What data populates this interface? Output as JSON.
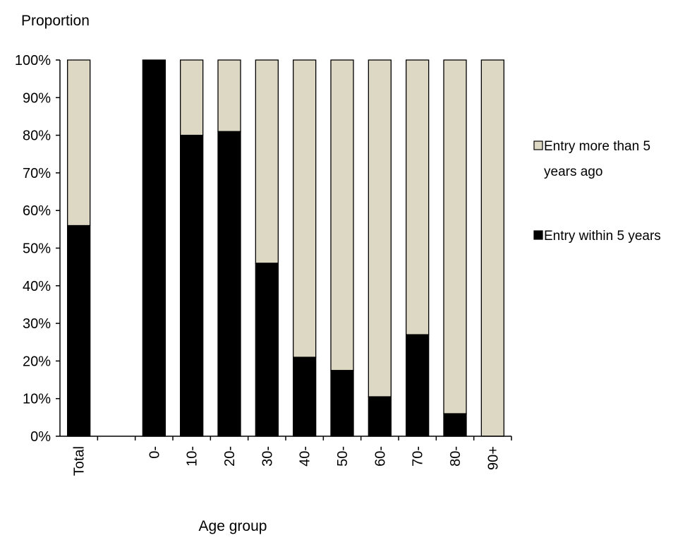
{
  "chart_data": {
    "type": "bar",
    "stacked": true,
    "title": "",
    "ylabel": "Proportion",
    "xlabel": "Age group",
    "categories": [
      "Total",
      "",
      "0-",
      "10-",
      "20-",
      "30-",
      "40-",
      "50-",
      "60-",
      "70-",
      "80-",
      "90+"
    ],
    "ylim": [
      0,
      100
    ],
    "yticks": [
      "0%",
      "10%",
      "20%",
      "30%",
      "40%",
      "50%",
      "60%",
      "70%",
      "80%",
      "90%",
      "100%"
    ],
    "series": [
      {
        "name": "Entry within 5 years",
        "color": "#000000",
        "values": [
          56,
          null,
          100,
          80,
          81,
          46,
          21,
          17.5,
          10.5,
          27,
          6,
          0
        ]
      },
      {
        "name": "Entry more than 5 years ago",
        "color": "#ddd8c4",
        "values": [
          44,
          null,
          0,
          20,
          19,
          54,
          79,
          82.5,
          89.5,
          73,
          94,
          100
        ]
      }
    ],
    "legend": {
      "position": "right",
      "items": [
        {
          "line1": "Entry more than 5",
          "line2": "years ago",
          "color": "#ddd8c4"
        },
        {
          "line1": "Entry within 5 years",
          "line2": "",
          "color": "#000000"
        }
      ]
    },
    "grid": false
  }
}
